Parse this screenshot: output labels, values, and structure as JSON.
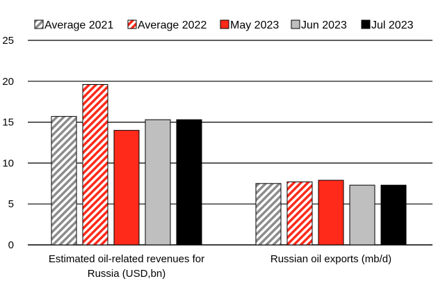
{
  "chart_data": {
    "type": "bar",
    "categories": [
      [
        "Estimated oil-related revenues for",
        "Russia (USD,bn)"
      ],
      [
        "Russian oil exports (mb/d)"
      ]
    ],
    "ylim": [
      0,
      25
    ],
    "yticks": [
      0,
      5,
      10,
      15,
      20,
      25
    ],
    "grid": true,
    "legend_position": "top",
    "series": [
      {
        "name": "Average 2021",
        "values": [
          15.7,
          7.5
        ],
        "color": "#8c8c8c",
        "pattern": "hatch"
      },
      {
        "name": "Average 2022",
        "values": [
          19.6,
          7.7
        ],
        "color": "#ff2a1a",
        "pattern": "hatch"
      },
      {
        "name": "May 2023",
        "values": [
          14.0,
          7.9
        ],
        "color": "#ff2a1a",
        "pattern": "solid"
      },
      {
        "name": "Jun 2023",
        "values": [
          15.3,
          7.3
        ],
        "color": "#bfbfbf",
        "pattern": "solid"
      },
      {
        "name": "Jul 2023",
        "values": [
          15.3,
          7.3
        ],
        "color": "#000000",
        "pattern": "solid"
      }
    ]
  }
}
